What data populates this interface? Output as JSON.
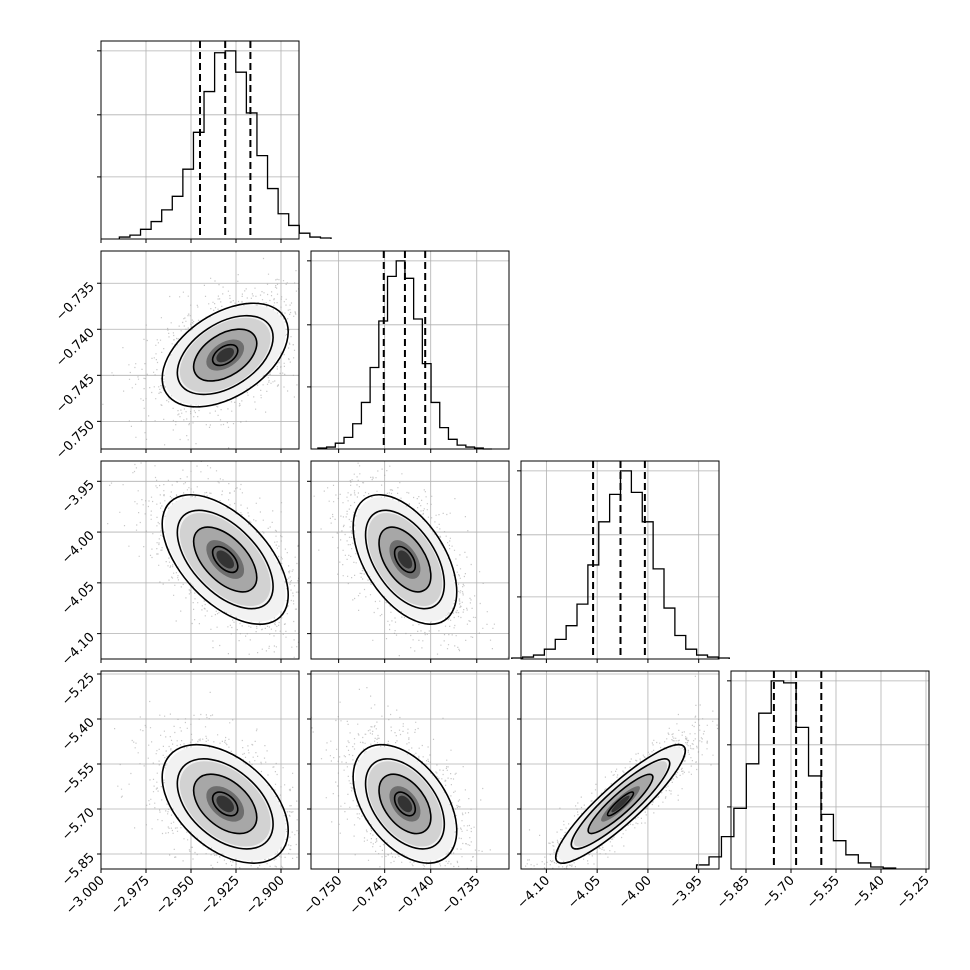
{
  "chart_data": {
    "type": "corner",
    "n_parameters": 4,
    "grid": true,
    "histogram_color": "#000000",
    "scatter_color": "#9a9a9a",
    "contour_color": "#000000",
    "quantile_line_style": "dashed",
    "parameters": [
      {
        "range": [
          -3.0,
          -2.89
        ],
        "median": -2.931,
        "q16": -2.945,
        "q84": -2.917,
        "ticks": [
          -3.0,
          -2.975,
          -2.95,
          -2.925,
          -2.9
        ],
        "tick_labels": [
          "−3.000",
          "−2.975",
          "−2.950",
          "−2.925",
          "−2.900"
        ],
        "hist_bins": [
          1,
          2,
          5,
          9,
          15,
          22,
          36,
          55,
          76,
          96,
          97,
          86,
          65,
          43,
          26,
          13,
          7,
          3,
          1,
          0.5
        ]
      },
      {
        "range": [
          -0.753,
          -0.7315
        ],
        "median": -0.7428,
        "q16": -0.7451,
        "q84": -0.7406,
        "ticks": [
          -0.75,
          -0.745,
          -0.74,
          -0.735
        ],
        "tick_labels": [
          "−0.750",
          "−0.745",
          "−0.740",
          "−0.735"
        ],
        "hist_bins": [
          0.5,
          1,
          3,
          6,
          13,
          24,
          42,
          66,
          89,
          97,
          88,
          67,
          44,
          24,
          11,
          5,
          2,
          1,
          0.5,
          0
        ]
      },
      {
        "range": [
          -4.125,
          -3.93
        ],
        "median": -4.027,
        "q16": -4.054,
        "q84": -4.003,
        "ticks": [
          -4.1,
          -4.05,
          -4.0,
          -3.95
        ],
        "tick_labels": [
          "−4.10",
          "−4.05",
          "−4.00",
          "−3.95"
        ],
        "hist_bins": [
          0.5,
          1,
          2,
          5,
          10,
          17,
          28,
          48,
          70,
          84,
          96,
          85,
          70,
          46,
          26,
          12,
          5,
          2,
          1,
          0.5
        ]
      },
      {
        "range": [
          -5.9,
          -5.24
        ],
        "median": -5.683,
        "q16": -5.757,
        "q84": -5.599,
        "ticks": [
          -5.85,
          -5.7,
          -5.55,
          -5.4,
          -5.25
        ],
        "tick_labels": [
          "−5.85",
          "−5.70",
          "−5.55",
          "−5.40",
          "−5.25"
        ],
        "hist_bins": [
          2,
          6,
          16,
          30,
          52,
          77,
          93,
          92,
          70,
          46,
          27,
          14,
          7,
          3,
          1,
          0.5
        ]
      }
    ],
    "correlations": [
      [
        1.0,
        0.45,
        -0.55,
        -0.45
      ],
      [
        0.45,
        1.0,
        -0.5,
        -0.45
      ],
      [
        -0.55,
        -0.5,
        1.0,
        0.9
      ],
      [
        -0.45,
        -0.45,
        0.9,
        1.0
      ]
    ]
  }
}
